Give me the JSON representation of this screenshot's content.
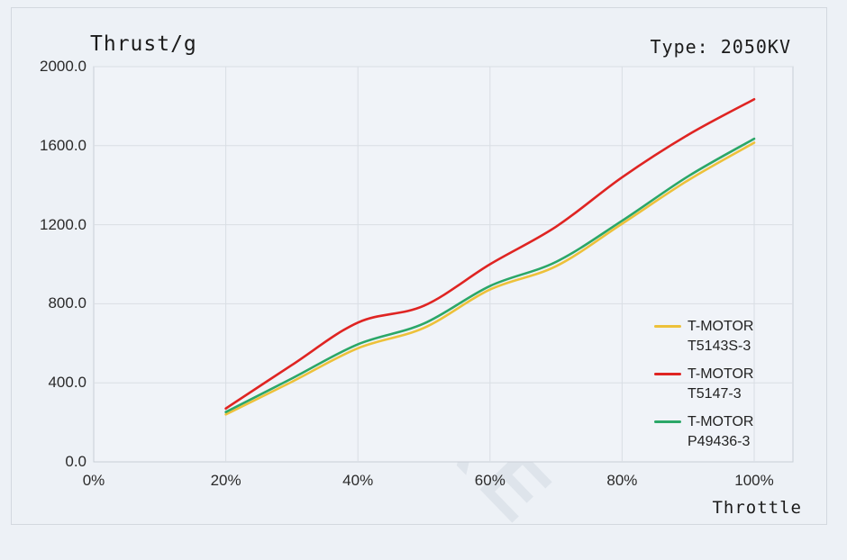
{
  "header": {
    "title": "Thrust/g",
    "type_label": "Type: 2050KV"
  },
  "watermark": "UUUSTORE",
  "colors": {
    "page_bg": "#edf1f6",
    "plot_bg": "#f0f3f8",
    "plot_border": "#c8ced6",
    "grid": "#d9dee4",
    "text": "#1b1b1b"
  },
  "chart_data": {
    "type": "line",
    "title": "Thrust/g",
    "subtitle": "Type: 2050KV",
    "xlabel": "Throttle",
    "ylabel": "Thrust/g",
    "grid": true,
    "legend_position": "inside lower right",
    "xlim": [
      0,
      105.8
    ],
    "ylim": [
      0,
      2000
    ],
    "x_tick_values": [
      0,
      20,
      40,
      60,
      80,
      100
    ],
    "x_tick_labels": [
      "0%",
      "20%",
      "40%",
      "60%",
      "80%",
      "100%"
    ],
    "y_tick_values": [
      0,
      400,
      800,
      1200,
      1600,
      2000
    ],
    "y_tick_labels": [
      "0.0",
      "400.0",
      "800.0",
      "1200.0",
      "1600.0",
      "2000.0"
    ],
    "x": [
      20,
      30,
      40,
      50,
      60,
      70,
      80,
      90,
      100
    ],
    "series": [
      {
        "name": "T-MOTOR T5143S-3",
        "legend_lines": [
          "T-MOTOR",
          "T5143S-3"
        ],
        "color": "#edc13a",
        "values": [
          240,
          405,
          575,
          678,
          872,
          990,
          1205,
          1425,
          1615
        ]
      },
      {
        "name": "T-MOTOR T5147-3",
        "legend_lines": [
          "T-MOTOR",
          "T5147-3"
        ],
        "color": "#df2422",
        "values": [
          270,
          490,
          705,
          790,
          1000,
          1190,
          1440,
          1655,
          1835
        ]
      },
      {
        "name": "T-MOTOR P49436-3",
        "legend_lines": [
          "T-MOTOR",
          "P49436-3"
        ],
        "color": "#2ba768",
        "values": [
          252,
          422,
          595,
          700,
          890,
          1012,
          1220,
          1445,
          1635
        ]
      }
    ]
  }
}
